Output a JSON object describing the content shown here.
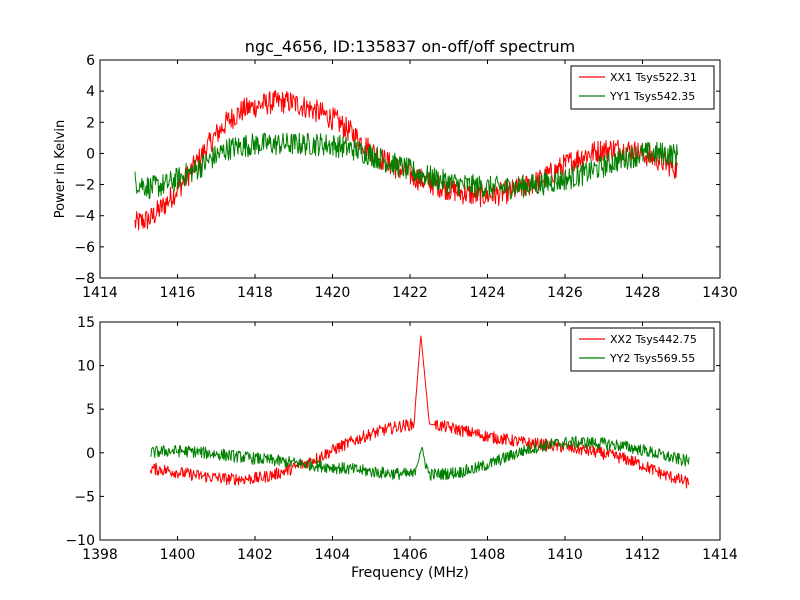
{
  "chart_data": [
    {
      "type": "line",
      "title": "ngc_4656, ID:135837 on-off/off spectrum",
      "xlabel": "",
      "ylabel": "Power in Kelvin",
      "xlim": [
        1414,
        1430
      ],
      "ylim": [
        -8,
        6
      ],
      "xticks": [
        1414,
        1416,
        1418,
        1420,
        1422,
        1424,
        1426,
        1428,
        1430
      ],
      "yticks": [
        -8,
        -6,
        -4,
        -2,
        0,
        2,
        4,
        6
      ],
      "grid": false,
      "legend_position": "top-right",
      "series": [
        {
          "name": "XX1 Tsys522.31",
          "color": "#ff0000",
          "x": [
            1414.9,
            1415.3,
            1415.7,
            1416.1,
            1416.5,
            1416.9,
            1417.3,
            1417.7,
            1418.1,
            1418.5,
            1418.9,
            1419.3,
            1419.7,
            1420.1,
            1420.5,
            1420.9,
            1421.3,
            1421.7,
            1422.1,
            1422.5,
            1422.9,
            1423.3,
            1423.7,
            1424.1,
            1424.5,
            1424.9,
            1425.3,
            1425.7,
            1426.1,
            1426.5,
            1426.9,
            1427.3,
            1427.7,
            1428.1,
            1428.5,
            1428.9
          ],
          "y": [
            -4.5,
            -4.2,
            -3.2,
            -2.0,
            -0.6,
            0.9,
            2.1,
            2.8,
            3.1,
            3.3,
            3.3,
            3.0,
            2.6,
            2.1,
            1.3,
            0.4,
            -0.4,
            -1.0,
            -1.5,
            -1.9,
            -2.2,
            -2.5,
            -2.7,
            -2.7,
            -2.5,
            -2.2,
            -1.8,
            -1.2,
            -0.6,
            -0.1,
            0.2,
            0.3,
            0.2,
            -0.1,
            -0.5,
            -1.0
          ],
          "noise": 0.75
        },
        {
          "name": "YY1 Tsys542.35",
          "color": "#008000",
          "x": [
            1414.9,
            1415.3,
            1415.7,
            1416.1,
            1416.5,
            1416.9,
            1417.3,
            1417.7,
            1418.1,
            1418.5,
            1418.9,
            1419.3,
            1419.7,
            1420.1,
            1420.5,
            1420.9,
            1421.3,
            1421.7,
            1422.1,
            1422.5,
            1422.9,
            1423.3,
            1423.7,
            1424.1,
            1424.5,
            1424.9,
            1425.3,
            1425.7,
            1426.1,
            1426.5,
            1426.9,
            1427.3,
            1427.7,
            1428.1,
            1428.5,
            1428.9
          ],
          "y": [
            -1.8,
            -2.2,
            -2.0,
            -1.5,
            -1.0,
            -0.3,
            0.3,
            0.5,
            0.6,
            0.6,
            0.6,
            0.6,
            0.6,
            0.5,
            0.3,
            0.0,
            -0.4,
            -0.8,
            -1.2,
            -1.5,
            -1.8,
            -2.0,
            -2.1,
            -2.2,
            -2.2,
            -2.1,
            -2.0,
            -1.8,
            -1.6,
            -1.3,
            -0.9,
            -0.5,
            -0.2,
            0.0,
            0.0,
            -0.1
          ],
          "noise": 0.75
        }
      ]
    },
    {
      "type": "line",
      "title": "",
      "xlabel": "Frequency (MHz)",
      "ylabel": "",
      "xlim": [
        1398,
        1414
      ],
      "ylim": [
        -10,
        15
      ],
      "xticks": [
        1398,
        1400,
        1402,
        1404,
        1406,
        1408,
        1410,
        1412,
        1414
      ],
      "yticks": [
        -10,
        -5,
        0,
        5,
        10,
        15
      ],
      "grid": false,
      "legend_position": "top-right",
      "series": [
        {
          "name": "XX2 Tsys442.75",
          "color": "#ff0000",
          "x": [
            1399.3,
            1399.7,
            1400.1,
            1400.5,
            1400.9,
            1401.3,
            1401.7,
            1402.1,
            1402.5,
            1402.9,
            1403.3,
            1403.7,
            1404.1,
            1404.5,
            1404.9,
            1405.3,
            1405.7,
            1406.1,
            1406.28,
            1406.5,
            1406.9,
            1407.3,
            1407.7,
            1408.1,
            1408.5,
            1408.9,
            1409.3,
            1409.7,
            1410.1,
            1410.5,
            1410.9,
            1411.3,
            1411.7,
            1412.1,
            1412.5,
            1412.9,
            1413.2
          ],
          "y": [
            -1.8,
            -2.0,
            -2.3,
            -2.6,
            -2.8,
            -3.0,
            -3.0,
            -2.9,
            -2.5,
            -1.9,
            -1.2,
            -0.4,
            0.5,
            1.3,
            2.0,
            2.6,
            3.0,
            3.3,
            13.5,
            3.3,
            3.0,
            2.6,
            2.2,
            1.8,
            1.5,
            1.2,
            1.0,
            0.8,
            0.6,
            0.3,
            0.0,
            -0.4,
            -0.9,
            -1.6,
            -2.4,
            -3.0,
            -3.5
          ],
          "noise": 0.7
        },
        {
          "name": "YY2 Tsys569.55",
          "color": "#008000",
          "x": [
            1399.3,
            1399.7,
            1400.1,
            1400.5,
            1400.9,
            1401.3,
            1401.7,
            1402.1,
            1402.5,
            1402.9,
            1403.3,
            1403.7,
            1404.1,
            1404.5,
            1404.9,
            1405.3,
            1405.7,
            1406.1,
            1406.28,
            1406.5,
            1406.9,
            1407.3,
            1407.7,
            1408.1,
            1408.5,
            1408.9,
            1409.3,
            1409.7,
            1410.1,
            1410.5,
            1410.9,
            1411.3,
            1411.7,
            1412.1,
            1412.5,
            1412.9,
            1413.2
          ],
          "y": [
            0.0,
            0.2,
            0.2,
            0.1,
            -0.1,
            -0.3,
            -0.5,
            -0.7,
            -0.9,
            -1.1,
            -1.3,
            -1.5,
            -1.7,
            -1.9,
            -2.1,
            -2.3,
            -2.4,
            -2.5,
            0.5,
            -2.5,
            -2.4,
            -2.2,
            -1.8,
            -1.2,
            -0.5,
            0.2,
            0.7,
            1.0,
            1.2,
            1.2,
            1.1,
            0.9,
            0.6,
            0.2,
            -0.3,
            -0.7,
            -1.0
          ],
          "noise": 0.7
        }
      ]
    }
  ]
}
